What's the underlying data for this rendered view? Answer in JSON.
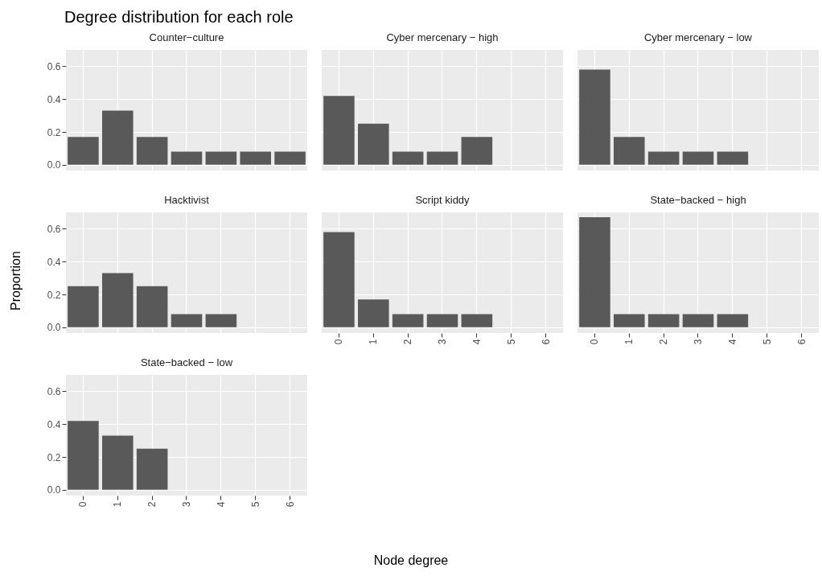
{
  "chart_data": [
    {
      "type": "other",
      "title": "Degree distribution for each role",
      "xlabel": "Node degree",
      "ylabel": "Proportion"
    },
    {
      "type": "bar",
      "title": "Counter−culture",
      "categories": [
        "0",
        "1",
        "2",
        "3",
        "4",
        "5",
        "6"
      ],
      "values": [
        0.17,
        0.33,
        0.17,
        0.08,
        0.08,
        0.08,
        0.08
      ],
      "color": "#595959",
      "ylim": [
        -0.035,
        0.7
      ],
      "yticks": [
        {
          "value": 0,
          "label": "0.0"
        },
        {
          "value": 0.2,
          "label": "0.2"
        },
        {
          "value": 0.4,
          "label": "0.4"
        },
        {
          "value": 0.6,
          "label": "0.6"
        }
      ],
      "grid": true,
      "tick_labels": "y"
    },
    {
      "type": "bar",
      "title": "Cyber mercenary − high",
      "categories": [
        "0",
        "1",
        "2",
        "3",
        "4",
        "5",
        "6"
      ],
      "values": [
        0.42,
        0.25,
        0.08,
        0.08,
        0.17,
        null,
        null
      ],
      "color": "#595959",
      "ylim": [
        -0.035,
        0.7
      ],
      "yticks": [
        0,
        0.2,
        0.4,
        0.6
      ],
      "grid": true,
      "tick_labels": false
    },
    {
      "type": "bar",
      "title": "Cyber mercenary − low",
      "categories": [
        "0",
        "1",
        "2",
        "3",
        "4",
        "5",
        "6"
      ],
      "values": [
        0.58,
        0.17,
        0.08,
        0.08,
        0.08,
        null,
        null
      ],
      "color": "#595959",
      "ylim": [
        -0.035,
        0.7
      ],
      "yticks": [
        0,
        0.2,
        0.4,
        0.6
      ],
      "grid": true,
      "tick_labels": false
    },
    {
      "type": "bar",
      "title": "Hacktivist",
      "categories": [
        "0",
        "1",
        "2",
        "3",
        "4",
        "5",
        "6"
      ],
      "values": [
        0.25,
        0.33,
        0.25,
        0.08,
        0.08,
        null,
        null
      ],
      "color": "#595959",
      "ylim": [
        -0.035,
        0.7
      ],
      "yticks": [
        {
          "value": 0,
          "label": "0.0"
        },
        {
          "value": 0.2,
          "label": "0.2"
        },
        {
          "value": 0.4,
          "label": "0.4"
        },
        {
          "value": 0.6,
          "label": "0.6"
        }
      ],
      "grid": true,
      "tick_labels": "y"
    },
    {
      "type": "bar",
      "title": "Script kiddy",
      "categories": [
        "0",
        "1",
        "2",
        "3",
        "4",
        "5",
        "6"
      ],
      "values": [
        0.58,
        0.17,
        0.08,
        0.08,
        0.08,
        null,
        null
      ],
      "color": "#595959",
      "ylim": [
        -0.035,
        0.7
      ],
      "yticks": [
        0,
        0.2,
        0.4,
        0.6
      ],
      "grid": true,
      "tick_labels": "x"
    },
    {
      "type": "bar",
      "title": "State−backed − high",
      "categories": [
        "0",
        "1",
        "2",
        "3",
        "4",
        "5",
        "6"
      ],
      "values": [
        0.67,
        0.08,
        0.08,
        0.08,
        0.08,
        null,
        null
      ],
      "color": "#595959",
      "ylim": [
        -0.035,
        0.7
      ],
      "yticks": [
        0,
        0.2,
        0.4,
        0.6
      ],
      "grid": true,
      "tick_labels": "x"
    },
    {
      "type": "bar",
      "title": "State−backed − low",
      "categories": [
        "0",
        "1",
        "2",
        "3",
        "4",
        "5",
        "6"
      ],
      "values": [
        0.42,
        0.33,
        0.25,
        null,
        null,
        null,
        null
      ],
      "color": "#595959",
      "ylim": [
        -0.035,
        0.7
      ],
      "yticks": [
        {
          "value": 0,
          "label": "0.0"
        },
        {
          "value": 0.2,
          "label": "0.2"
        },
        {
          "value": 0.4,
          "label": "0.4"
        },
        {
          "value": 0.6,
          "label": "0.6"
        }
      ],
      "grid": true
    }
  ]
}
